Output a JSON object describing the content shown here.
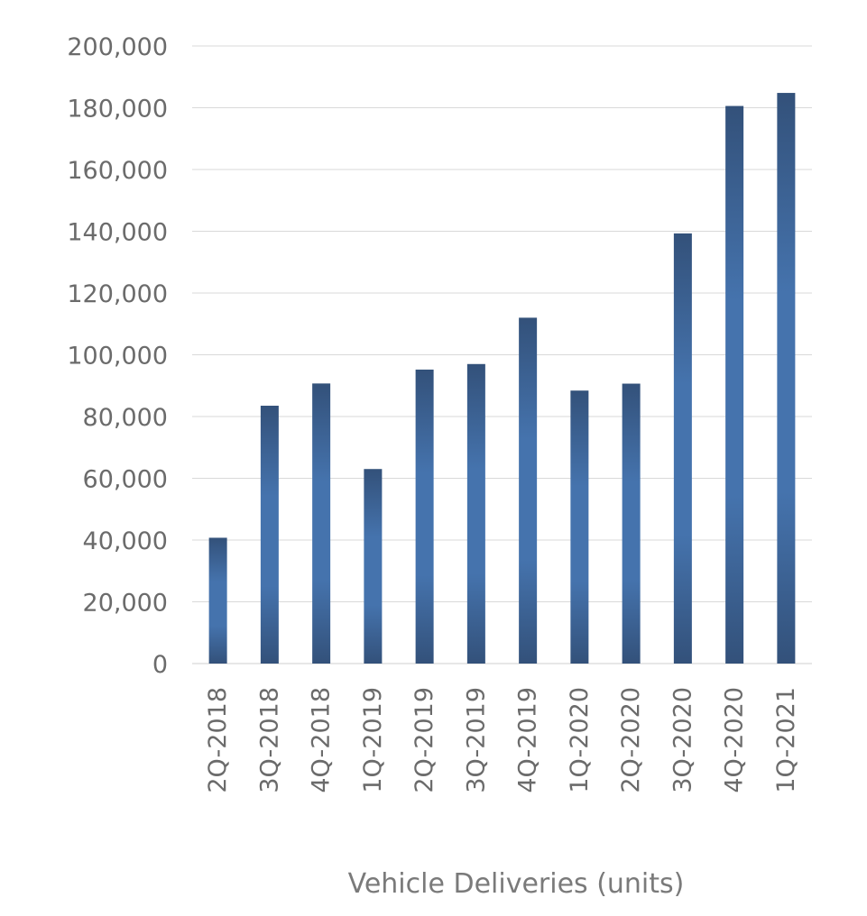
{
  "chart_data": {
    "type": "bar",
    "title": "",
    "xlabel": "Vehicle Deliveries (units)",
    "ylabel": "",
    "categories": [
      "2Q-2018",
      "3Q-2018",
      "4Q-2018",
      "1Q-2019",
      "2Q-2019",
      "3Q-2019",
      "4Q-2019",
      "1Q-2020",
      "2Q-2020",
      "3Q-2020",
      "4Q-2020",
      "1Q-2021"
    ],
    "series": [
      {
        "name": "Vehicle Deliveries",
        "values": [
          40740,
          83500,
          90700,
          63000,
          95200,
          97000,
          112000,
          88400,
          90650,
          139300,
          180570,
          184800
        ]
      }
    ],
    "ylim": [
      0,
      200000
    ],
    "yticks": [
      0,
      20000,
      40000,
      60000,
      80000,
      100000,
      120000,
      140000,
      160000,
      180000,
      200000
    ],
    "ytick_labels": [
      "0",
      "20,000",
      "40,000",
      "60,000",
      "80,000",
      "100,000",
      "120,000",
      "140,000",
      "160,000",
      "180,000",
      "200,000"
    ],
    "grid": true,
    "legend": "none",
    "colors": {
      "bar_dark": "#33517a",
      "bar_light": "#4573ad",
      "grid": "#d9d9d9",
      "text": "#6b6b6b"
    }
  }
}
